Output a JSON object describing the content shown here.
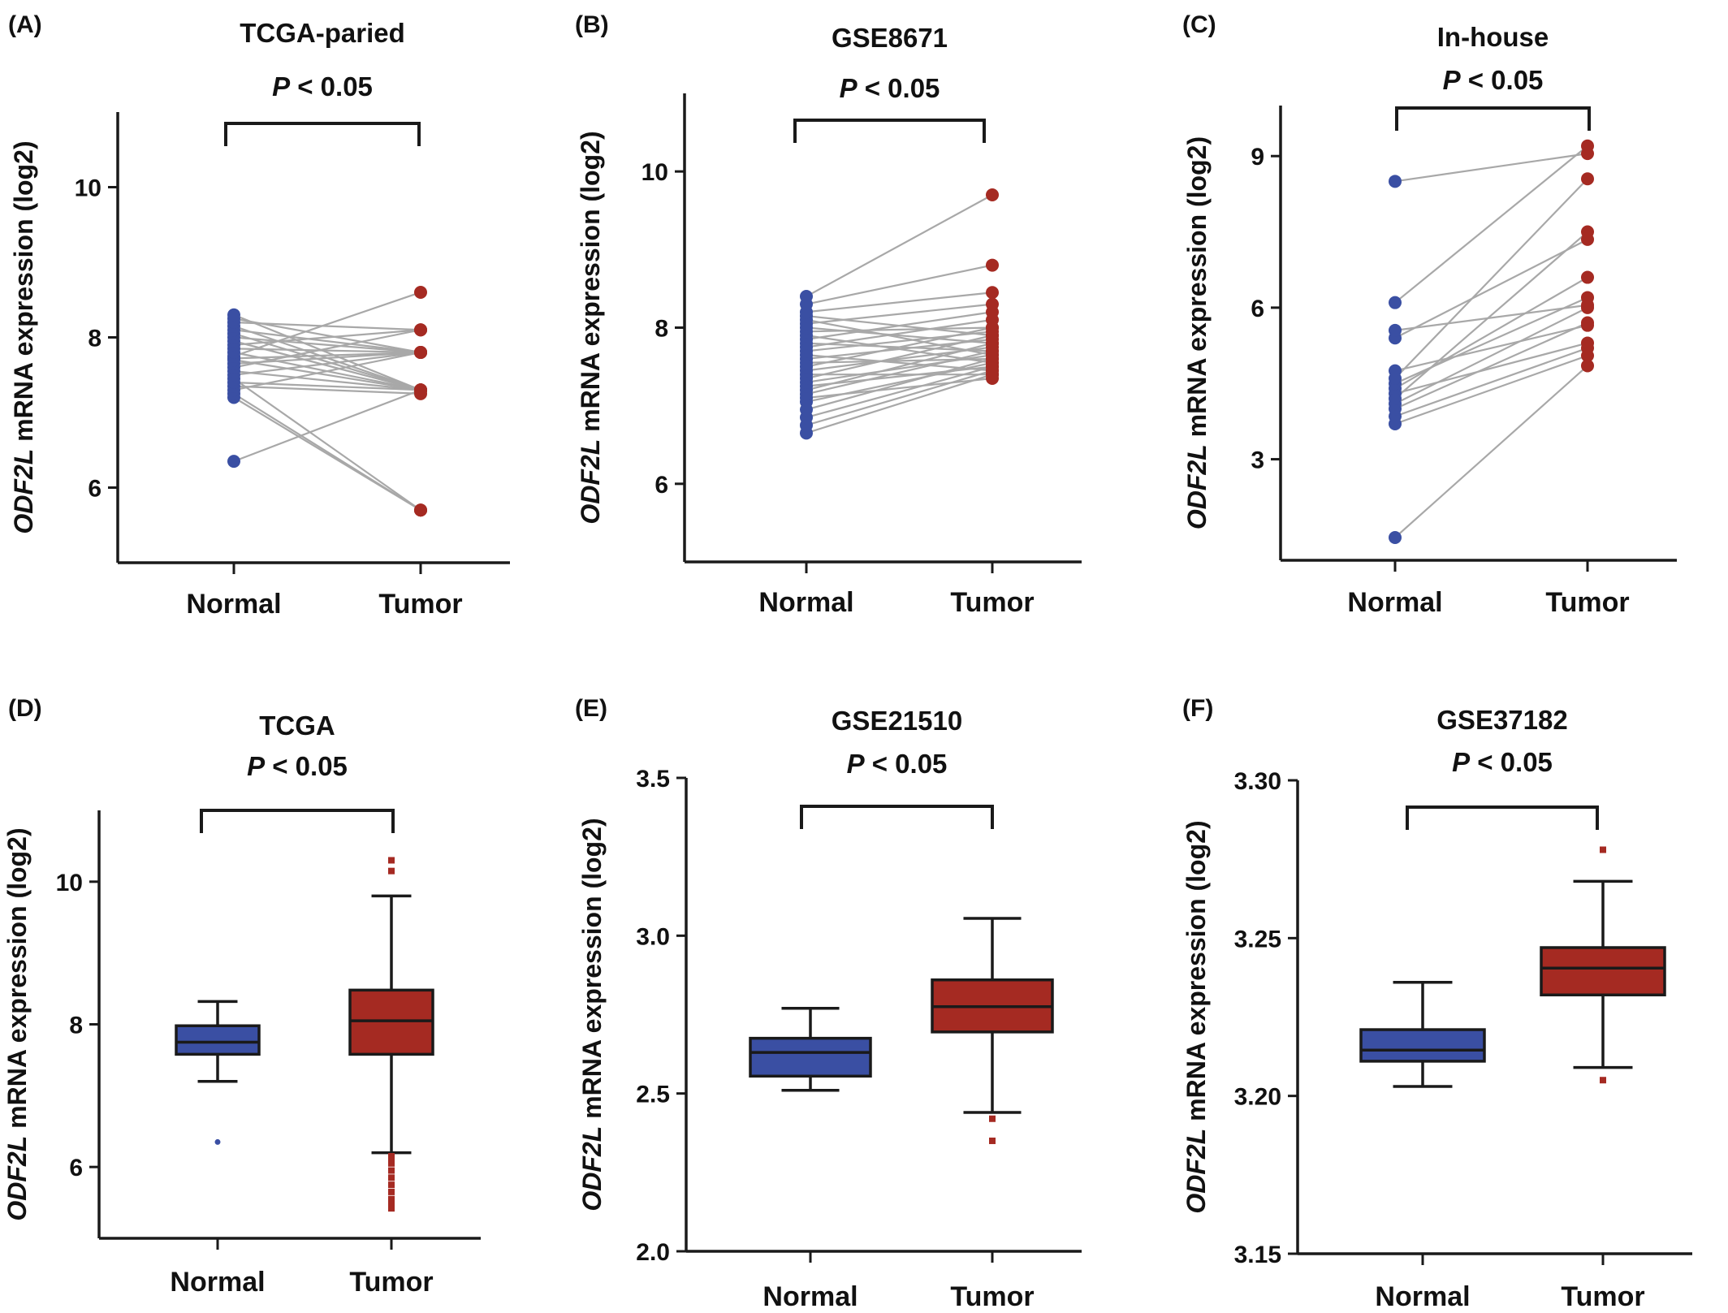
{
  "colors": {
    "normal": "#3a4fa3",
    "tumor": "#a52a22",
    "pair_line": "#a8a8a8",
    "axis": "#1a1a1a"
  },
  "chart_data": [
    {
      "panel": "(A)",
      "type": "paired-dot",
      "title": "TCGA-paried",
      "p_label_italic": "P",
      "p_label_rest": " < 0.05",
      "ylabel_italic": "ODF2L",
      "ylabel_rest": " mRNA expression (log2)",
      "categories": [
        "Normal",
        "Tumor"
      ],
      "ylim": [
        5.0,
        11.0
      ],
      "yticks": [
        6,
        8,
        10
      ],
      "pairs": [
        [
          6.35,
          7.3
        ],
        [
          7.2,
          5.7
        ],
        [
          7.25,
          5.7
        ],
        [
          7.3,
          7.8
        ],
        [
          7.35,
          7.25
        ],
        [
          7.4,
          7.3
        ],
        [
          7.45,
          5.7
        ],
        [
          7.5,
          7.8
        ],
        [
          7.55,
          7.3
        ],
        [
          7.6,
          8.1
        ],
        [
          7.65,
          7.8
        ],
        [
          7.7,
          7.3
        ],
        [
          7.72,
          7.8
        ],
        [
          7.75,
          8.6
        ],
        [
          7.8,
          7.3
        ],
        [
          7.85,
          7.8
        ],
        [
          7.9,
          8.1
        ],
        [
          7.95,
          7.3
        ],
        [
          8.0,
          7.8
        ],
        [
          8.05,
          7.3
        ],
        [
          8.1,
          7.8
        ],
        [
          8.15,
          7.3
        ],
        [
          8.2,
          8.1
        ],
        [
          8.25,
          7.8
        ],
        [
          8.3,
          7.3
        ]
      ]
    },
    {
      "panel": "(B)",
      "type": "paired-dot",
      "title": "GSE8671",
      "p_label_italic": "P",
      "p_label_rest": " < 0.05",
      "ylabel_italic": "ODF2L",
      "ylabel_rest": " mRNA expression (log2)",
      "categories": [
        "Normal",
        "Tumor"
      ],
      "ylim": [
        5.0,
        11.0
      ],
      "yticks": [
        6,
        8,
        10
      ],
      "pairs": [
        [
          6.65,
          7.4
        ],
        [
          6.75,
          7.45
        ],
        [
          6.85,
          7.5
        ],
        [
          6.95,
          7.6
        ],
        [
          7.05,
          7.55
        ],
        [
          7.1,
          7.35
        ],
        [
          7.15,
          7.7
        ],
        [
          7.2,
          7.8
        ],
        [
          7.25,
          7.5
        ],
        [
          7.3,
          7.65
        ],
        [
          7.35,
          7.9
        ],
        [
          7.4,
          7.4
        ],
        [
          7.45,
          7.75
        ],
        [
          7.5,
          8.0
        ],
        [
          7.55,
          7.6
        ],
        [
          7.6,
          7.85
        ],
        [
          7.65,
          7.45
        ],
        [
          7.7,
          7.95
        ],
        [
          7.75,
          8.1
        ],
        [
          7.8,
          7.7
        ],
        [
          7.85,
          8.2
        ],
        [
          7.9,
          7.55
        ],
        [
          7.95,
          8.0
        ],
        [
          8.0,
          7.8
        ],
        [
          8.05,
          8.3
        ],
        [
          8.1,
          7.65
        ],
        [
          8.15,
          7.9
        ],
        [
          8.2,
          8.45
        ],
        [
          8.3,
          8.8
        ],
        [
          8.4,
          9.7
        ]
      ]
    },
    {
      "panel": "(C)",
      "type": "paired-dot",
      "title": "In-house",
      "p_label_italic": "P",
      "p_label_rest": " < 0.05",
      "ylabel_italic": "ODF2L",
      "ylabel_rest": " mRNA expression (log2)",
      "categories": [
        "Normal",
        "Tumor"
      ],
      "ylim": [
        1.0,
        10.0
      ],
      "yticks": [
        3,
        6,
        9
      ],
      "pairs": [
        [
          1.45,
          4.85
        ],
        [
          3.7,
          5.05
        ],
        [
          3.85,
          5.2
        ],
        [
          4.0,
          5.7
        ],
        [
          4.1,
          6.0
        ],
        [
          4.2,
          7.5
        ],
        [
          4.3,
          5.3
        ],
        [
          4.4,
          6.6
        ],
        [
          4.5,
          6.2
        ],
        [
          4.6,
          8.55
        ],
        [
          4.75,
          5.65
        ],
        [
          5.4,
          7.35
        ],
        [
          5.55,
          6.05
        ],
        [
          6.1,
          9.2
        ],
        [
          8.5,
          9.05
        ]
      ]
    },
    {
      "panel": "(D)",
      "type": "box",
      "title": "TCGA",
      "p_label_italic": "P",
      "p_label_rest": " < 0.05",
      "ylabel_italic": "ODF2L",
      "ylabel_rest": " mRNA expression (log2)",
      "categories": [
        "Normal",
        "Tumor"
      ],
      "ylim": [
        5.0,
        11.0
      ],
      "yticks": [
        6,
        8,
        10
      ],
      "boxes": [
        {
          "min": 7.2,
          "q1": 7.58,
          "median": 7.75,
          "q3": 7.98,
          "max": 8.32,
          "outliers": [
            6.35
          ]
        },
        {
          "min": 6.2,
          "q1": 7.58,
          "median": 8.05,
          "q3": 8.48,
          "max": 9.8,
          "outliers": [
            10.3,
            10.15,
            6.15,
            6.12,
            6.05,
            5.95,
            5.85,
            5.75,
            5.65,
            5.55,
            5.5,
            5.42
          ]
        }
      ]
    },
    {
      "panel": "(E)",
      "type": "box",
      "title": "GSE21510",
      "p_label_italic": "P",
      "p_label_rest": " < 0.05",
      "ylabel_italic": "ODF2L",
      "ylabel_rest": " mRNA expression (log2)",
      "categories": [
        "Normal",
        "Tumor"
      ],
      "ylim": [
        2.0,
        3.5
      ],
      "yticks": [
        2.0,
        2.5,
        3.0,
        3.5
      ],
      "ytick_labels": [
        "2.0",
        "2.5",
        "3.0",
        "3.5"
      ],
      "boxes": [
        {
          "min": 2.51,
          "q1": 2.555,
          "median": 2.63,
          "q3": 2.675,
          "max": 2.77,
          "outliers": []
        },
        {
          "min": 2.44,
          "q1": 2.695,
          "median": 2.775,
          "q3": 2.86,
          "max": 3.055,
          "outliers": [
            2.42,
            2.35
          ]
        }
      ]
    },
    {
      "panel": "(F)",
      "type": "box",
      "title": "GSE37182",
      "p_label_italic": "P",
      "p_label_rest": " < 0.05",
      "ylabel_italic": "ODF2L",
      "ylabel_rest": " mRNA expression (log2)",
      "categories": [
        "Normal",
        "Tumor"
      ],
      "ylim": [
        3.15,
        3.3
      ],
      "yticks": [
        3.15,
        3.2,
        3.25,
        3.3
      ],
      "ytick_labels": [
        "3.15",
        "3.20",
        "3.25",
        "3.30"
      ],
      "boxes": [
        {
          "min": 3.203,
          "q1": 3.211,
          "median": 3.2145,
          "q3": 3.221,
          "max": 3.236,
          "outliers": []
        },
        {
          "min": 3.209,
          "q1": 3.232,
          "median": 3.2405,
          "q3": 3.247,
          "max": 3.268,
          "outliers": [
            3.278,
            3.205
          ]
        }
      ]
    }
  ]
}
